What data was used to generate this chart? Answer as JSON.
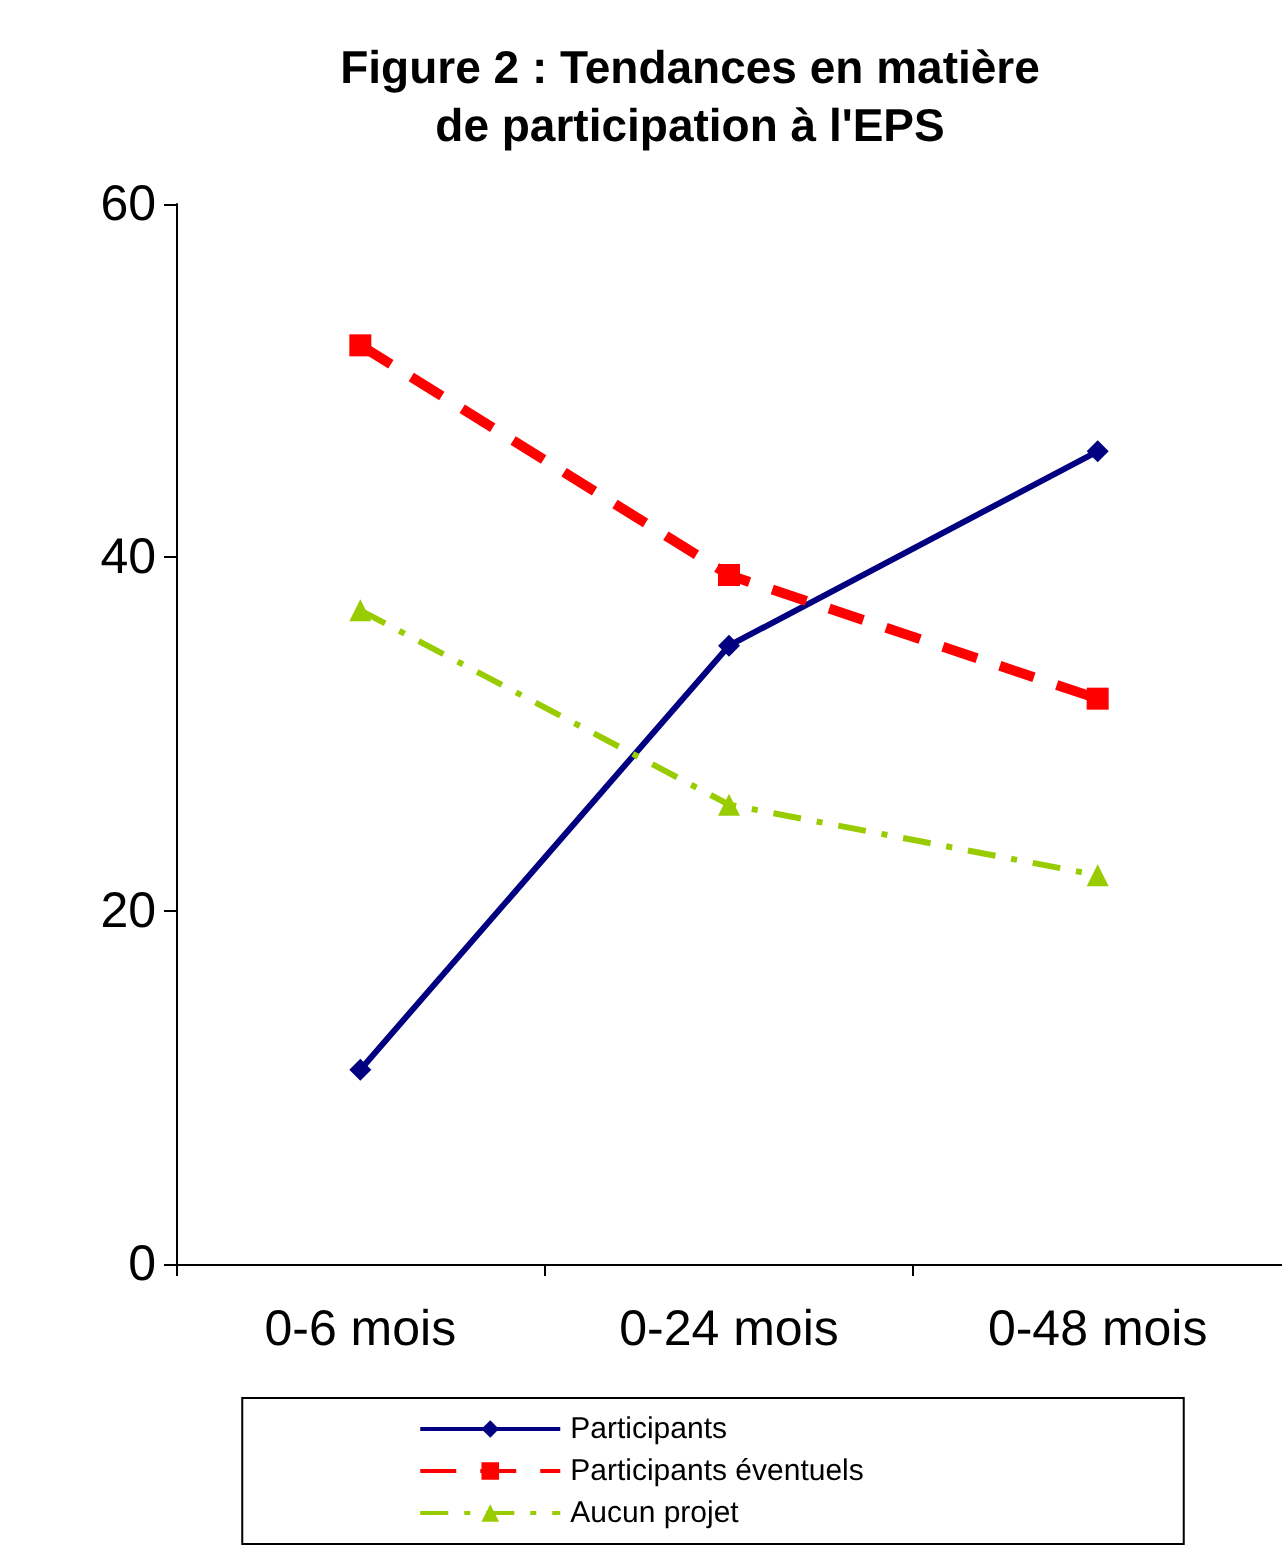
{
  "chart_data": {
    "type": "line",
    "title": "Figure 2 : Tendances en matière\nde participation à l'EPS",
    "categories": [
      "0-6 mois",
      "0-24 mois",
      "0-48 mois"
    ],
    "series": [
      {
        "name": "Participants",
        "color": "#000080",
        "values": [
          11,
          35,
          46
        ],
        "marker": "diamond",
        "line_style": "solid"
      },
      {
        "name": "Participants éventuels",
        "color": "#ff0000",
        "values": [
          52,
          39,
          32
        ],
        "marker": "square",
        "line_style": "dashed"
      },
      {
        "name": "Aucun projet",
        "color": "#99cc00",
        "values": [
          37,
          26,
          22
        ],
        "marker": "triangle",
        "line_style": "dotted"
      }
    ],
    "ylim": [
      0,
      60
    ],
    "yticks": [
      0,
      20,
      40,
      60
    ],
    "grid": false,
    "legend": "bottom"
  }
}
